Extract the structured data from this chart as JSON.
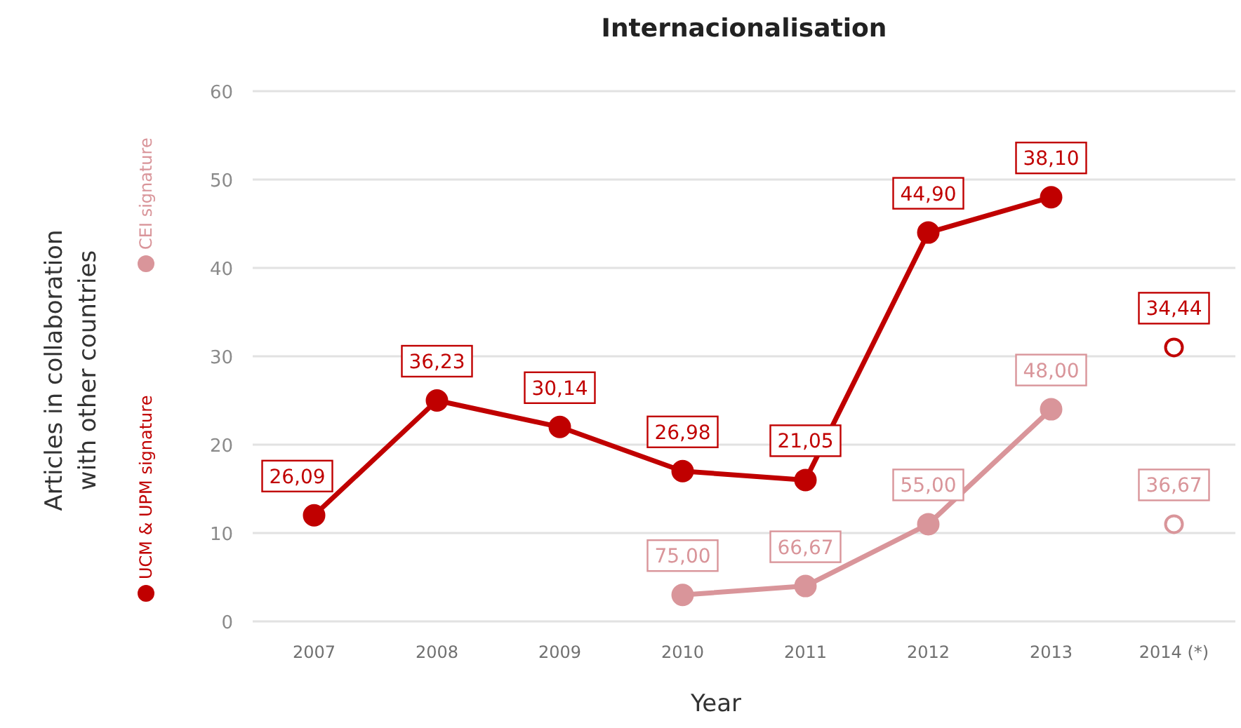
{
  "chart_data": {
    "type": "line",
    "title": "Internacionalisation",
    "xlabel": "Year",
    "ylabel": "Articles in collaboration\nwith other countries",
    "categories": [
      "2007",
      "2008",
      "2009",
      "2010",
      "2011",
      "2012",
      "2013",
      "2014 (*)"
    ],
    "ylim": [
      0,
      60
    ],
    "yticks": [
      0,
      10,
      20,
      30,
      40,
      50,
      60
    ],
    "grid": "y",
    "legend": "left",
    "marker": "circle",
    "series": [
      {
        "name": "UCM & UPM signature",
        "color": "#c00000",
        "values": [
          12,
          25,
          22,
          17,
          16,
          44,
          48,
          null
        ]
      },
      {
        "name": "CEI signature",
        "color": "#d9959a",
        "values": [
          null,
          null,
          null,
          3,
          4,
          11,
          24,
          null
        ]
      },
      {
        "type": "scatter",
        "color": "#c00000",
        "values": [
          null,
          null,
          null,
          null,
          null,
          null,
          null,
          31
        ]
      },
      {
        "type": "scatter",
        "color": "#d9959a",
        "values": [
          null,
          null,
          null,
          null,
          null,
          null,
          null,
          11
        ]
      }
    ],
    "annotations": [
      {
        "text": "26,09",
        "x": "2007",
        "y": 12
      },
      {
        "text": "36,23",
        "x": "2008",
        "y": 25
      },
      {
        "text": "30,14",
        "x": "2009",
        "y": 22
      },
      {
        "text": "26,98",
        "x": "2010",
        "y": 17
      },
      {
        "text": "21,05",
        "x": "2011",
        "y": 16
      },
      {
        "text": "44,90",
        "x": "2012",
        "y": 44
      },
      {
        "text": "38,10",
        "x": "2013",
        "y": 48
      },
      {
        "text": "34,44",
        "x": "2014 (*)",
        "y": 31
      },
      {
        "text": "75,00",
        "x": "2010",
        "y": 3
      },
      {
        "text": "66,67",
        "x": "2011",
        "y": 4
      },
      {
        "text": "55,00",
        "x": "2012",
        "y": 11
      },
      {
        "text": "48,00",
        "x": "2013",
        "y": 24
      },
      {
        "text": "36,67",
        "x": "2014 (*)",
        "y": 11
      }
    ]
  }
}
